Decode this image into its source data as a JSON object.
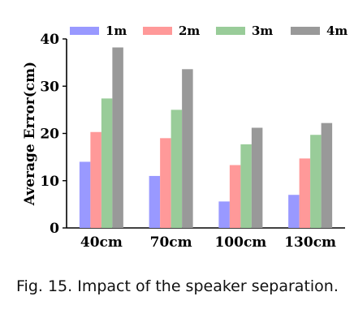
{
  "chart_data": {
    "type": "bar",
    "categories": [
      "40cm",
      "70cm",
      "100cm",
      "130cm"
    ],
    "series": [
      {
        "name": "1m",
        "values": [
          14,
          11,
          5.6,
          7
        ],
        "color": "#9999ff"
      },
      {
        "name": "2m",
        "values": [
          20.3,
          19,
          13.3,
          14.7
        ],
        "color": "#ff9999"
      },
      {
        "name": "3m",
        "values": [
          27.4,
          25,
          17.7,
          19.7
        ],
        "color": "#99cc99"
      },
      {
        "name": "4m",
        "values": [
          38.2,
          33.6,
          21.2,
          22.2
        ],
        "color": "#999999"
      }
    ],
    "xlabel": "",
    "ylabel": "Average Error(cm)",
    "ylim": [
      0,
      40
    ],
    "yticks": [
      0,
      10,
      20,
      30,
      40
    ],
    "grid": false,
    "legend": "top"
  },
  "caption": "Fig. 15.  Impact of the speaker separa­tion."
}
